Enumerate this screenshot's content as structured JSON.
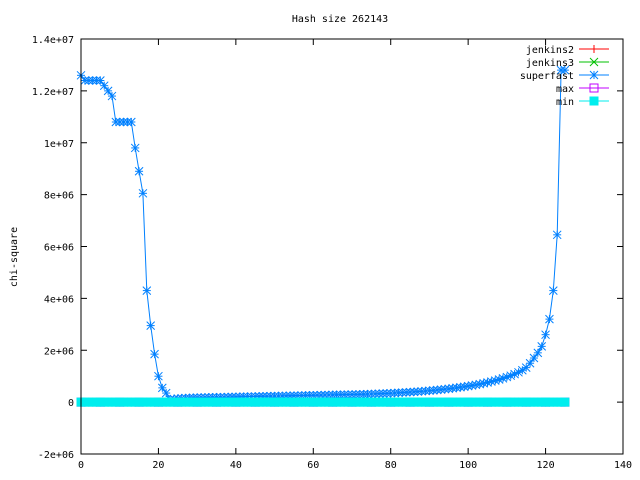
{
  "chart_data": {
    "type": "line",
    "title": "Hash size 262143",
    "xlabel": "",
    "ylabel": "chi-square",
    "xlim": [
      0,
      140
    ],
    "ylim": [
      -2000000,
      14000000
    ],
    "x_ticks": [
      0,
      20,
      40,
      60,
      80,
      100,
      120,
      140
    ],
    "x_tick_labels": [
      "0",
      "20",
      "40",
      "60",
      "80",
      "100",
      "120",
      "140"
    ],
    "y_ticks": [
      -2000000,
      0,
      2000000,
      4000000,
      6000000,
      8000000,
      10000000,
      12000000,
      14000000
    ],
    "y_tick_labels": [
      "-2e+06",
      "0",
      "2e+06",
      "4e+06",
      "6e+06",
      "8e+06",
      "1e+07",
      "1.2e+07",
      "1.4e+07"
    ],
    "grid": false,
    "legend_position": "top-right",
    "series": [
      {
        "name": "jenkins2",
        "color": "#ff0000",
        "marker": "plus",
        "x": [
          0,
          5,
          10,
          15,
          20,
          25,
          30,
          35,
          40,
          45,
          50,
          55,
          60,
          65,
          70,
          75,
          80,
          85,
          90,
          95,
          100,
          105,
          110,
          115,
          120,
          125
        ],
        "y": [
          0,
          0,
          0,
          0,
          0,
          0,
          0,
          0,
          0,
          0,
          0,
          0,
          0,
          0,
          0,
          0,
          0,
          0,
          0,
          0,
          0,
          0,
          0,
          0,
          0,
          0
        ]
      },
      {
        "name": "jenkins3",
        "color": "#00c000",
        "marker": "cross",
        "x": [
          0,
          5,
          10,
          15,
          20,
          25,
          30,
          35,
          40,
          45,
          50,
          55,
          60,
          65,
          70,
          75,
          80,
          85,
          90,
          95,
          100,
          105,
          110,
          115,
          120,
          125
        ],
        "y": [
          0,
          0,
          0,
          0,
          0,
          0,
          0,
          0,
          0,
          0,
          0,
          0,
          0,
          0,
          0,
          0,
          0,
          0,
          0,
          0,
          0,
          0,
          0,
          0,
          0,
          0
        ]
      },
      {
        "name": "superfast",
        "color": "#0080ff",
        "marker": "star",
        "x": [
          0,
          1,
          2,
          3,
          4,
          5,
          6,
          7,
          8,
          9,
          10,
          11,
          12,
          13,
          14,
          15,
          16,
          17,
          18,
          19,
          20,
          21,
          22,
          23,
          24,
          25,
          26,
          27,
          28,
          29,
          30,
          31,
          32,
          33,
          34,
          35,
          36,
          37,
          38,
          39,
          40,
          41,
          42,
          43,
          44,
          45,
          46,
          47,
          48,
          49,
          50,
          51,
          52,
          53,
          54,
          55,
          56,
          57,
          58,
          59,
          60,
          61,
          62,
          63,
          64,
          65,
          66,
          67,
          68,
          69,
          70,
          71,
          72,
          73,
          74,
          75,
          76,
          77,
          78,
          79,
          80,
          81,
          82,
          83,
          84,
          85,
          86,
          87,
          88,
          89,
          90,
          91,
          92,
          93,
          94,
          95,
          96,
          97,
          98,
          99,
          100,
          101,
          102,
          103,
          104,
          105,
          106,
          107,
          108,
          109,
          110,
          111,
          112,
          113,
          114,
          115,
          116,
          117,
          118,
          119,
          120,
          121,
          122,
          123,
          124,
          125
        ],
        "y": [
          12600000,
          12400000,
          12400000,
          12400000,
          12400000,
          12400000,
          12200000,
          12000000,
          11800000,
          10800000,
          10800000,
          10800000,
          10800000,
          10800000,
          9800000,
          8900000,
          8050000,
          4300000,
          2950000,
          1850000,
          1000000,
          550000,
          350000,
          100000,
          120000,
          140000,
          150000,
          160000,
          165000,
          170000,
          175000,
          180000,
          182000,
          185000,
          188000,
          190000,
          193000,
          196000,
          199000,
          202000,
          205000,
          208000,
          211000,
          214000,
          217000,
          220000,
          223000,
          226000,
          229000,
          232000,
          235000,
          238000,
          241000,
          244000,
          247000,
          250000,
          253000,
          256000,
          259000,
          262000,
          265000,
          268000,
          271000,
          274000,
          277000,
          280000,
          283000,
          286000,
          289000,
          292000,
          295000,
          298000,
          301000,
          305000,
          310000,
          315000,
          320000,
          326000,
          332000,
          338000,
          345000,
          352000,
          360000,
          368000,
          377000,
          386000,
          396000,
          406000,
          417000,
          429000,
          441000,
          454000,
          468000,
          483000,
          499000,
          516000,
          534000,
          553000,
          573000,
          594000,
          617000,
          641000,
          667000,
          695000,
          725000,
          758000,
          793000,
          831000,
          872000,
          917000,
          966000,
          1020000,
          1080000,
          1150000,
          1230000,
          1330000,
          1500000,
          1700000,
          1900000,
          2150000,
          2600000,
          3200000,
          4300000,
          6450000,
          12800000,
          12800000
        ]
      },
      {
        "name": "max",
        "color": "#c000ff",
        "marker": "square",
        "x": [
          0,
          5,
          10,
          15,
          20,
          25,
          30,
          35,
          40,
          45,
          50,
          55,
          60,
          65,
          70,
          75,
          80,
          85,
          90,
          95,
          100,
          105,
          110,
          115,
          120,
          125
        ],
        "y": [
          0,
          0,
          0,
          0,
          0,
          0,
          0,
          0,
          0,
          0,
          0,
          0,
          0,
          0,
          0,
          0,
          0,
          0,
          0,
          0,
          0,
          0,
          0,
          0,
          0,
          0
        ]
      },
      {
        "name": "min",
        "color": "#00eeee",
        "marker": "filled-square",
        "x": [
          0,
          1,
          2,
          3,
          4,
          5,
          6,
          7,
          8,
          9,
          10,
          11,
          12,
          13,
          14,
          15,
          16,
          17,
          18,
          19,
          20,
          21,
          22,
          23,
          24,
          25,
          26,
          27,
          28,
          29,
          30,
          31,
          32,
          33,
          34,
          35,
          36,
          37,
          38,
          39,
          40,
          41,
          42,
          43,
          44,
          45,
          46,
          47,
          48,
          49,
          50,
          51,
          52,
          53,
          54,
          55,
          56,
          57,
          58,
          59,
          60,
          61,
          62,
          63,
          64,
          65,
          66,
          67,
          68,
          69,
          70,
          71,
          72,
          73,
          74,
          75,
          76,
          77,
          78,
          79,
          80,
          81,
          82,
          83,
          84,
          85,
          86,
          87,
          88,
          89,
          90,
          91,
          92,
          93,
          94,
          95,
          96,
          97,
          98,
          99,
          100,
          101,
          102,
          103,
          104,
          105,
          106,
          107,
          108,
          109,
          110,
          111,
          112,
          113,
          114,
          115,
          116,
          117,
          118,
          119,
          120,
          121,
          122,
          123,
          124,
          125
        ],
        "y": [
          0,
          0,
          0,
          0,
          0,
          0,
          0,
          0,
          0,
          0,
          0,
          0,
          0,
          0,
          0,
          0,
          0,
          0,
          0,
          0,
          0,
          0,
          0,
          0,
          0,
          0,
          0,
          0,
          0,
          0,
          0,
          0,
          0,
          0,
          0,
          0,
          0,
          0,
          0,
          0,
          0,
          0,
          0,
          0,
          0,
          0,
          0,
          0,
          0,
          0,
          0,
          0,
          0,
          0,
          0,
          0,
          0,
          0,
          0,
          0,
          0,
          0,
          0,
          0,
          0,
          0,
          0,
          0,
          0,
          0,
          0,
          0,
          0,
          0,
          0,
          0,
          0,
          0,
          0,
          0,
          0,
          0,
          0,
          0,
          0,
          0,
          0,
          0,
          0,
          0,
          0,
          0,
          0,
          0,
          0,
          0,
          0,
          0,
          0,
          0,
          0,
          0,
          0,
          0,
          0,
          0,
          0,
          0,
          0,
          0,
          0,
          0,
          0,
          0,
          0,
          0,
          0,
          0,
          0,
          0,
          0,
          0,
          0,
          0,
          0,
          0
        ]
      }
    ]
  }
}
